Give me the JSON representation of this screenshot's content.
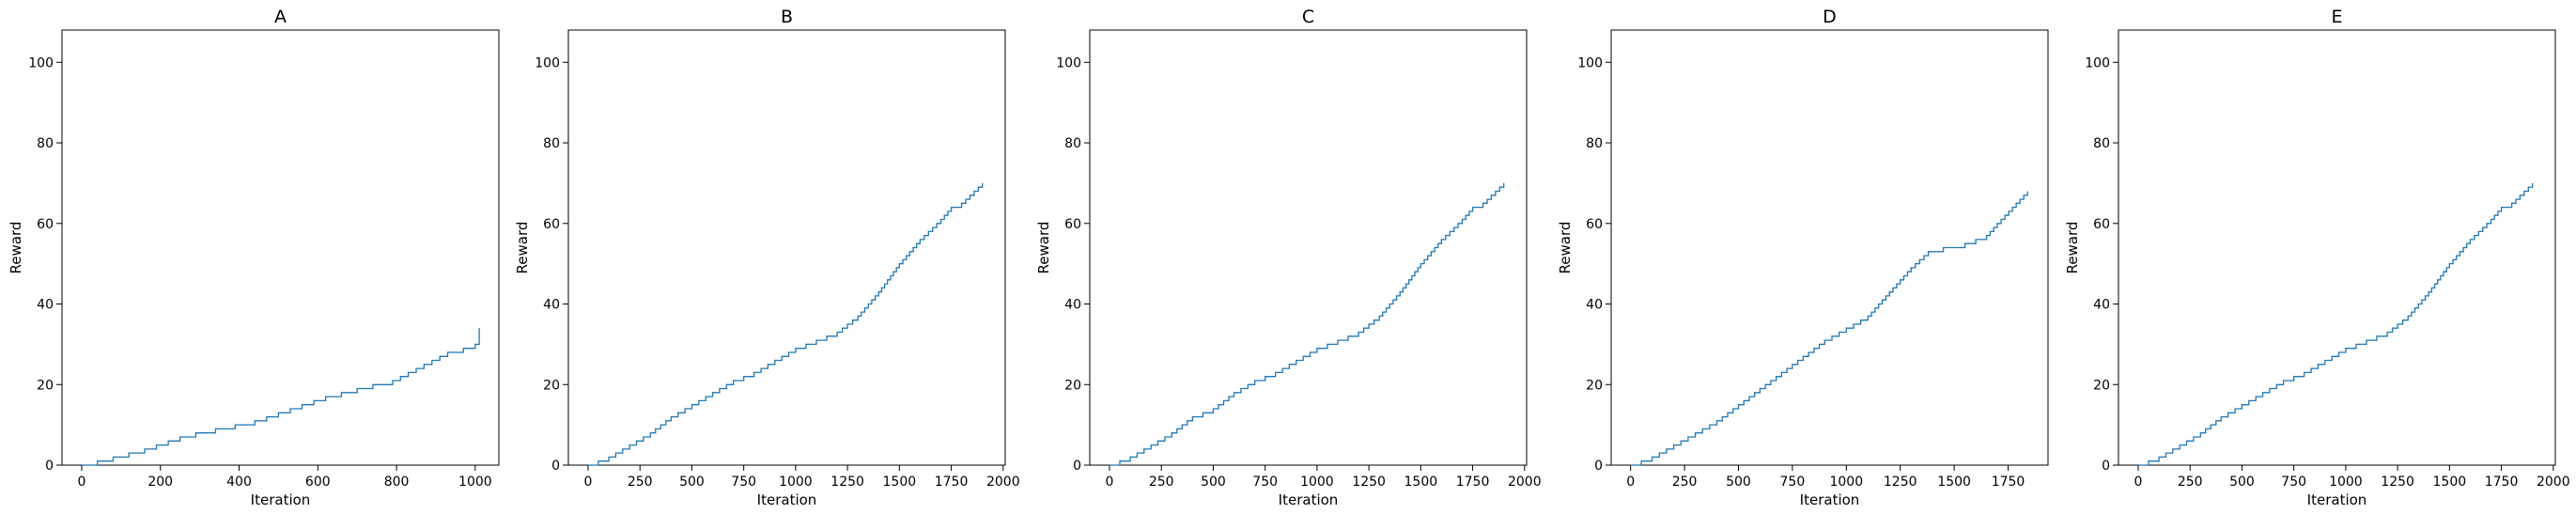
{
  "chart_data": [
    {
      "type": "line",
      "title": "A",
      "xlabel": "Iteration",
      "ylabel": "Reward",
      "xlim": [
        -50,
        1060
      ],
      "ylim": [
        0,
        108
      ],
      "xticks": [
        0,
        200,
        400,
        600,
        800,
        1000
      ],
      "yticks": [
        0,
        20,
        40,
        60,
        80,
        100
      ],
      "grid": false,
      "color": "#1f77b4",
      "series": [
        {
          "step": true,
          "points": [
            [
              0,
              0
            ],
            [
              40,
              0
            ],
            [
              40,
              1
            ],
            [
              80,
              1
            ],
            [
              80,
              2
            ],
            [
              120,
              2
            ],
            [
              120,
              3
            ],
            [
              160,
              3
            ],
            [
              160,
              4
            ],
            [
              190,
              4
            ],
            [
              190,
              5
            ],
            [
              220,
              5
            ],
            [
              220,
              6
            ],
            [
              250,
              6
            ],
            [
              250,
              7
            ],
            [
              290,
              7
            ],
            [
              290,
              8
            ],
            [
              340,
              8
            ],
            [
              340,
              9
            ],
            [
              390,
              9
            ],
            [
              390,
              10
            ],
            [
              440,
              10
            ],
            [
              440,
              11
            ],
            [
              470,
              11
            ],
            [
              470,
              12
            ],
            [
              500,
              12
            ],
            [
              500,
              13
            ],
            [
              530,
              13
            ],
            [
              530,
              14
            ],
            [
              560,
              14
            ],
            [
              560,
              15
            ],
            [
              590,
              15
            ],
            [
              590,
              16
            ],
            [
              620,
              16
            ],
            [
              620,
              17
            ],
            [
              660,
              17
            ],
            [
              660,
              18
            ],
            [
              700,
              18
            ],
            [
              700,
              19
            ],
            [
              740,
              19
            ],
            [
              740,
              20
            ],
            [
              790,
              20
            ],
            [
              790,
              21
            ],
            [
              810,
              21
            ],
            [
              810,
              22
            ],
            [
              830,
              22
            ],
            [
              830,
              23
            ],
            [
              850,
              23
            ],
            [
              850,
              24
            ],
            [
              870,
              24
            ],
            [
              870,
              25
            ],
            [
              890,
              25
            ],
            [
              890,
              26
            ],
            [
              910,
              26
            ],
            [
              910,
              27
            ],
            [
              930,
              27
            ],
            [
              930,
              28
            ],
            [
              970,
              28
            ],
            [
              970,
              29
            ],
            [
              1000,
              29
            ],
            [
              1000,
              30
            ],
            [
              1030,
              30
            ],
            [
              1030,
              31
            ],
            [
              1050,
              31
            ],
            [
              1050,
              32
            ],
            [
              1070,
              32
            ],
            [
              1070,
              33
            ],
            [
              1090,
              33
            ],
            [
              1090,
              34
            ],
            [
              1010,
              34
            ]
          ]
        }
      ]
    },
    {
      "type": "line",
      "title": "B",
      "xlabel": "Iteration",
      "ylabel": "Reward",
      "xlim": [
        -95,
        2010
      ],
      "ylim": [
        0,
        108
      ],
      "xticks": [
        0,
        250,
        500,
        750,
        1000,
        1250,
        1500,
        1750,
        2000
      ],
      "yticks": [
        0,
        20,
        40,
        60,
        80,
        100
      ],
      "grid": false,
      "color": "#1f77b4",
      "series": [
        {
          "step": false,
          "points": [
            [
              0,
              0
            ],
            [
              100,
              2
            ],
            [
              200,
              5
            ],
            [
              300,
              8
            ],
            [
              400,
              12
            ],
            [
              500,
              15
            ],
            [
              600,
              18
            ],
            [
              700,
              21
            ],
            [
              800,
              23
            ],
            [
              900,
              26
            ],
            [
              1000,
              29
            ],
            [
              1100,
              31
            ],
            [
              1200,
              33
            ],
            [
              1300,
              37
            ],
            [
              1350,
              40
            ],
            [
              1400,
              43
            ],
            [
              1500,
              50
            ],
            [
              1600,
              56
            ],
            [
              1700,
              61
            ],
            [
              1750,
              64
            ],
            [
              1800,
              65
            ],
            [
              1900,
              70
            ]
          ]
        }
      ]
    },
    {
      "type": "line",
      "title": "C",
      "xlabel": "Iteration",
      "ylabel": "Reward",
      "xlim": [
        -95,
        2010
      ],
      "ylim": [
        0,
        108
      ],
      "xticks": [
        0,
        250,
        500,
        750,
        1000,
        1250,
        1500,
        1750,
        2000
      ],
      "yticks": [
        0,
        20,
        40,
        60,
        80,
        100
      ],
      "grid": false,
      "color": "#1f77b4",
      "series": [
        {
          "step": false,
          "points": [
            [
              0,
              0
            ],
            [
              100,
              2
            ],
            [
              200,
              5
            ],
            [
              300,
              8
            ],
            [
              400,
              12
            ],
            [
              500,
              14
            ],
            [
              600,
              18
            ],
            [
              700,
              21
            ],
            [
              800,
              23
            ],
            [
              900,
              26
            ],
            [
              1000,
              29
            ],
            [
              1100,
              31
            ],
            [
              1200,
              33
            ],
            [
              1300,
              37
            ],
            [
              1350,
              40
            ],
            [
              1400,
              43
            ],
            [
              1500,
              50
            ],
            [
              1600,
              56
            ],
            [
              1700,
              61
            ],
            [
              1750,
              64
            ],
            [
              1800,
              65
            ],
            [
              1900,
              70
            ]
          ]
        }
      ]
    },
    {
      "type": "line",
      "title": "D",
      "xlabel": "Iteration",
      "ylabel": "Reward",
      "xlim": [
        -90,
        1935
      ],
      "ylim": [
        0,
        108
      ],
      "xticks": [
        0,
        250,
        500,
        750,
        1000,
        1250,
        1500,
        1750
      ],
      "yticks": [
        0,
        20,
        40,
        60,
        80,
        100
      ],
      "grid": false,
      "color": "#1f77b4",
      "series": [
        {
          "step": false,
          "points": [
            [
              0,
              0
            ],
            [
              100,
              2
            ],
            [
              200,
              5
            ],
            [
              300,
              8
            ],
            [
              400,
              11
            ],
            [
              500,
              15
            ],
            [
              600,
              19
            ],
            [
              700,
              23
            ],
            [
              800,
              27
            ],
            [
              900,
              31
            ],
            [
              1000,
              34
            ],
            [
              1100,
              37
            ],
            [
              1200,
              43
            ],
            [
              1300,
              49
            ],
            [
              1380,
              53
            ],
            [
              1450,
              54
            ],
            [
              1550,
              55
            ],
            [
              1650,
              57
            ],
            [
              1700,
              60
            ],
            [
              1840,
              68
            ]
          ]
        }
      ]
    },
    {
      "type": "line",
      "title": "E",
      "xlabel": "Iteration",
      "ylabel": "Reward",
      "xlim": [
        -95,
        2010
      ],
      "ylim": [
        0,
        108
      ],
      "xticks": [
        0,
        250,
        500,
        750,
        1000,
        1250,
        1500,
        1750,
        2000
      ],
      "yticks": [
        0,
        20,
        40,
        60,
        80,
        100
      ],
      "grid": false,
      "color": "#1f77b4",
      "series": [
        {
          "step": false,
          "points": [
            [
              0,
              0
            ],
            [
              100,
              2
            ],
            [
              200,
              5
            ],
            [
              300,
              8
            ],
            [
              400,
              12
            ],
            [
              500,
              15
            ],
            [
              600,
              18
            ],
            [
              700,
              21
            ],
            [
              800,
              23
            ],
            [
              900,
              26
            ],
            [
              1000,
              29
            ],
            [
              1100,
              31
            ],
            [
              1200,
              33
            ],
            [
              1300,
              37
            ],
            [
              1350,
              40
            ],
            [
              1400,
              43
            ],
            [
              1500,
              50
            ],
            [
              1600,
              56
            ],
            [
              1700,
              61
            ],
            [
              1750,
              64
            ],
            [
              1800,
              65
            ],
            [
              1900,
              70
            ]
          ]
        }
      ]
    }
  ]
}
